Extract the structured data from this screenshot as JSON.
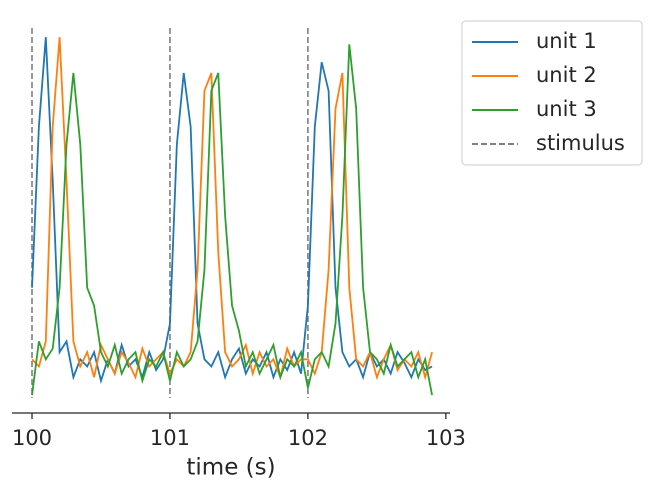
{
  "chart_data": {
    "type": "line",
    "x_label": "time (s)",
    "xlim": [
      99.855,
      103.03
    ],
    "xticks": [
      100,
      101,
      102,
      103
    ],
    "ylim": [
      -0.05,
      1.02
    ],
    "x": [
      100.0,
      100.05,
      100.1,
      100.15,
      100.2,
      100.25,
      100.3,
      100.35,
      100.4,
      100.45,
      100.5,
      100.55,
      100.6,
      100.65,
      100.7,
      100.75,
      100.8,
      100.85,
      100.9,
      100.95,
      101.0,
      101.05,
      101.1,
      101.15,
      101.2,
      101.25,
      101.3,
      101.35,
      101.4,
      101.45,
      101.5,
      101.55,
      101.6,
      101.65,
      101.7,
      101.75,
      101.8,
      101.85,
      101.9,
      101.95,
      102.0,
      102.05,
      102.1,
      102.15,
      102.2,
      102.25,
      102.3,
      102.35,
      102.4,
      102.45,
      102.5,
      102.55,
      102.6,
      102.65,
      102.7,
      102.75,
      102.8,
      102.85,
      102.9
    ],
    "series": [
      {
        "name": "unit 1",
        "color": "#1f77b4",
        "values": [
          0.3,
          0.75,
          1.0,
          0.6,
          0.12,
          0.15,
          0.05,
          0.1,
          0.08,
          0.12,
          0.04,
          0.1,
          0.06,
          0.14,
          0.08,
          0.1,
          0.05,
          0.12,
          0.07,
          0.1,
          0.2,
          0.7,
          0.9,
          0.75,
          0.2,
          0.1,
          0.08,
          0.12,
          0.05,
          0.1,
          0.13,
          0.06,
          0.1,
          0.08,
          0.12,
          0.05,
          0.1,
          0.07,
          0.12,
          0.06,
          0.25,
          0.75,
          0.93,
          0.85,
          0.3,
          0.12,
          0.08,
          0.1,
          0.05,
          0.12,
          0.08,
          0.1,
          0.06,
          0.12,
          0.09,
          0.05,
          0.1,
          0.07,
          0.08
        ]
      },
      {
        "name": "unit 2",
        "color": "#ff7f0e",
        "values": [
          0.1,
          0.08,
          0.15,
          0.75,
          1.0,
          0.6,
          0.15,
          0.08,
          0.12,
          0.05,
          0.14,
          0.1,
          0.06,
          0.12,
          0.09,
          0.05,
          0.13,
          0.08,
          0.1,
          0.12,
          0.06,
          0.1,
          0.08,
          0.12,
          0.35,
          0.85,
          0.9,
          0.4,
          0.12,
          0.08,
          0.1,
          0.14,
          0.06,
          0.12,
          0.08,
          0.1,
          0.05,
          0.13,
          0.08,
          0.1,
          0.1,
          0.06,
          0.12,
          0.35,
          0.8,
          0.9,
          0.3,
          0.1,
          0.08,
          0.12,
          0.05,
          0.1,
          0.14,
          0.07,
          0.1,
          0.08,
          0.12,
          0.05,
          0.12
        ]
      },
      {
        "name": "unit 3",
        "color": "#2ca02c",
        "values": [
          0.0,
          0.15,
          0.1,
          0.13,
          0.3,
          0.7,
          0.9,
          0.7,
          0.3,
          0.25,
          0.12,
          0.08,
          0.14,
          0.06,
          0.1,
          0.12,
          0.04,
          0.1,
          0.08,
          0.12,
          0.04,
          0.12,
          0.08,
          0.1,
          0.15,
          0.35,
          0.85,
          0.9,
          0.5,
          0.25,
          0.18,
          0.08,
          0.12,
          0.06,
          0.1,
          0.14,
          0.05,
          0.1,
          0.08,
          0.12,
          0.02,
          0.1,
          0.12,
          0.08,
          0.2,
          0.5,
          0.98,
          0.8,
          0.3,
          0.12,
          0.1,
          0.06,
          0.14,
          0.08,
          0.1,
          0.12,
          0.05,
          0.1,
          0.0
        ]
      }
    ],
    "stimulus": {
      "name": "stimulus",
      "color": "#7f7f7f",
      "x": [
        100,
        101,
        102
      ]
    }
  }
}
